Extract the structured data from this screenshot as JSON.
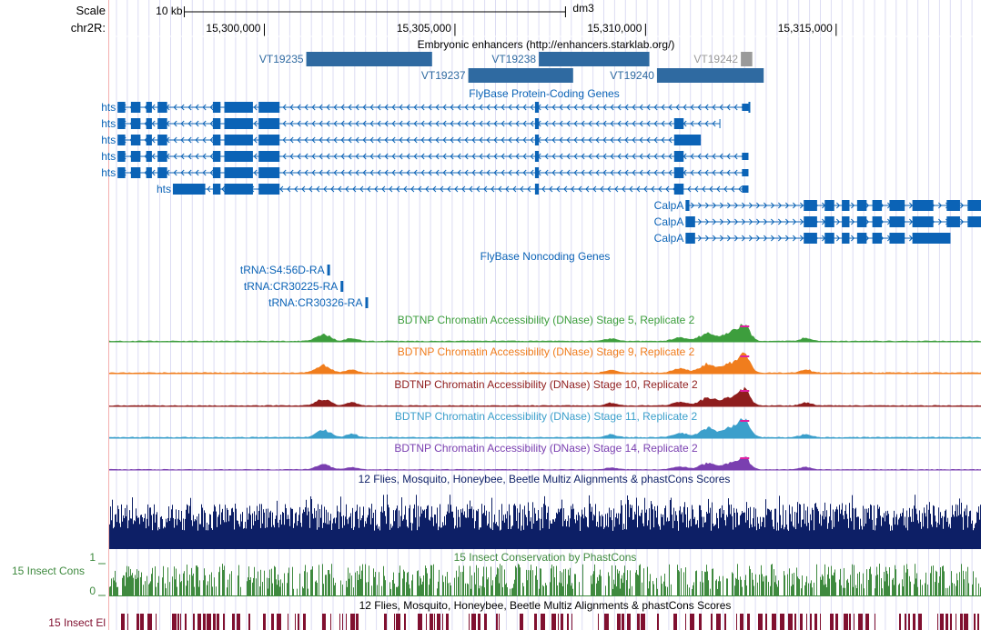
{
  "ruler": {
    "scale_label": "Scale",
    "chrom_label": "chr2R:",
    "scale_bar_text": "10 kb",
    "assembly": "dm3",
    "positions": [
      {
        "text": "15,300,000",
        "coord": 15300000
      },
      {
        "text": "15,305,000",
        "coord": 15305000
      },
      {
        "text": "15,310,000",
        "coord": 15310000
      },
      {
        "text": "15,315,000",
        "coord": 15315000
      }
    ],
    "view_start": 15295930,
    "view_end": 15318800,
    "scale_bar_start": 15297900,
    "scale_bar_end": 15307900
  },
  "colors": {
    "enhancer": "#2f6aa1",
    "enhancer_grey": "#9a9a9a",
    "gene": "#0b63b6",
    "gene_label": "#0b63b6",
    "stage5": "#3d9e3d",
    "stage9": "#f07d1d",
    "stage10": "#8f1d1d",
    "stage11": "#3b9fcb",
    "stage14": "#7a3fb0",
    "multiz": "#0d1f66",
    "cons": "#3f8a3f",
    "elements": "#801030",
    "peak_cap": "#e020a0",
    "grid": "#dcdcf3",
    "left_border": "#f4b0b0"
  },
  "tracks": {
    "enhancers": {
      "title": "Embryonic enhancers (http://enhancers.starklab.org/)",
      "items": [
        {
          "name": "VT19235",
          "start": 15301100,
          "end": 15304400,
          "row": 0
        },
        {
          "name": "VT19238",
          "start": 15307200,
          "end": 15310100,
          "row": 0
        },
        {
          "name": "VT19242",
          "start": 15312500,
          "end": 15312800,
          "row": 0,
          "grey": true
        },
        {
          "name": "VT19237",
          "start": 15305350,
          "end": 15308100,
          "row": 1
        },
        {
          "name": "VT19240",
          "start": 15310300,
          "end": 15313100,
          "row": 1
        }
      ]
    },
    "coding": {
      "title": "FlyBase Protein-Coding Genes",
      "genes": [
        {
          "name": "hts",
          "row": 0,
          "start": 15296150,
          "end": 15312700,
          "strand": "-",
          "exons": [
            [
              15296150,
              15296350
            ],
            [
              15296500,
              15296750
            ],
            [
              15296900,
              15297050
            ],
            [
              15297200,
              15297450
            ],
            [
              15298650,
              15298850
            ],
            [
              15298950,
              15299700
            ],
            [
              15299850,
              15300400
            ],
            [
              15307100,
              15307200
            ],
            [
              15312700,
              15312700
            ]
          ],
          "cds_thin": [],
          "end_box": [
            15312530,
            15312700
          ]
        },
        {
          "name": "hts",
          "row": 1,
          "start": 15296150,
          "end": 15311950,
          "strand": "-",
          "exons": [
            [
              15296150,
              15296350
            ],
            [
              15296500,
              15296750
            ],
            [
              15296900,
              15297050
            ],
            [
              15297200,
              15297450
            ],
            [
              15298650,
              15298850
            ],
            [
              15298950,
              15299700
            ],
            [
              15299850,
              15300400
            ],
            [
              15307100,
              15307200
            ],
            [
              15310750,
              15311000
            ]
          ],
          "end_box": null
        },
        {
          "name": "hts",
          "row": 2,
          "start": 15296150,
          "end": 15311450,
          "strand": "-",
          "exons": [
            [
              15296150,
              15296350
            ],
            [
              15296500,
              15296750
            ],
            [
              15296900,
              15297050
            ],
            [
              15297200,
              15297450
            ],
            [
              15298650,
              15298850
            ],
            [
              15298950,
              15299700
            ],
            [
              15299850,
              15300400
            ],
            [
              15307100,
              15307200
            ],
            [
              15310750,
              15311450
            ]
          ],
          "end_box": null
        },
        {
          "name": "hts",
          "row": 3,
          "start": 15296150,
          "end": 15312700,
          "strand": "-",
          "exons": [
            [
              15296150,
              15296350
            ],
            [
              15296500,
              15296750
            ],
            [
              15296900,
              15297050
            ],
            [
              15297200,
              15297450
            ],
            [
              15298650,
              15298850
            ],
            [
              15298950,
              15299700
            ],
            [
              15299850,
              15300400
            ],
            [
              15307100,
              15307200
            ],
            [
              15310750,
              15311000
            ]
          ],
          "end_box": [
            15312530,
            15312700
          ]
        },
        {
          "name": "hts",
          "row": 4,
          "start": 15296150,
          "end": 15312700,
          "strand": "-",
          "exons": [
            [
              15296150,
              15296350
            ],
            [
              15296500,
              15296750
            ],
            [
              15296900,
              15297050
            ],
            [
              15297200,
              15297450
            ],
            [
              15298650,
              15298850
            ],
            [
              15298950,
              15299700
            ],
            [
              15299850,
              15300400
            ],
            [
              15307100,
              15307200
            ],
            [
              15310750,
              15311000
            ]
          ],
          "end_box": [
            15312530,
            15312700
          ]
        },
        {
          "name": "hts",
          "row": 5,
          "start": 15297600,
          "end": 15312700,
          "strand": "-",
          "exons": [
            [
              15297600,
              15298450
            ],
            [
              15298650,
              15298850
            ],
            [
              15298950,
              15299700
            ],
            [
              15299850,
              15300400
            ],
            [
              15307100,
              15307200
            ],
            [
              15310750,
              15311000
            ]
          ],
          "end_box": [
            15312530,
            15312700
          ]
        },
        {
          "name": "CalpA",
          "row": 6,
          "start": 15311050,
          "end": 15318800,
          "strand": "+",
          "exons": [
            [
              15311050,
              15311150
            ],
            [
              15314150,
              15314500
            ],
            [
              15314700,
              15314950
            ],
            [
              15315150,
              15315350
            ],
            [
              15315550,
              15315800
            ],
            [
              15315950,
              15316200
            ],
            [
              15316400,
              15316800
            ],
            [
              15317000,
              15317550
            ],
            [
              15317900,
              15318250
            ],
            [
              15318450,
              15318800
            ]
          ],
          "end_box": null
        },
        {
          "name": "CalpA",
          "row": 7,
          "start": 15311050,
          "end": 15318800,
          "strand": "+",
          "exons": [
            [
              15311050,
              15311300
            ],
            [
              15314150,
              15314500
            ],
            [
              15314700,
              15314950
            ],
            [
              15315150,
              15315350
            ],
            [
              15315550,
              15315800
            ],
            [
              15315950,
              15316200
            ],
            [
              15316400,
              15316800
            ],
            [
              15317000,
              15317550
            ],
            [
              15317900,
              15318250
            ],
            [
              15318450,
              15318800
            ]
          ],
          "end_box": null
        },
        {
          "name": "CalpA",
          "row": 8,
          "start": 15311050,
          "end": 15318000,
          "strand": "+",
          "exons": [
            [
              15311050,
              15311300
            ],
            [
              15314150,
              15314500
            ],
            [
              15314700,
              15314950
            ],
            [
              15315150,
              15315350
            ],
            [
              15315550,
              15315800
            ],
            [
              15315950,
              15316200
            ],
            [
              15316400,
              15316800
            ],
            [
              15317000,
              15318000
            ]
          ],
          "end_box": null
        }
      ]
    },
    "noncoding": {
      "title": "FlyBase Noncoding Genes",
      "genes": [
        {
          "name": "tRNA:S4:56D-RA",
          "start": 15301650,
          "end": 15301720,
          "row": 0
        },
        {
          "name": "tRNA:CR30225-RA",
          "start": 15302000,
          "end": 15302070,
          "row": 1
        },
        {
          "name": "tRNA:CR30326-RA",
          "start": 15302650,
          "end": 15302720,
          "row": 2
        }
      ]
    },
    "dnase": [
      {
        "key": "stage5",
        "title": "BDTNP Chromatin Accessibility (DNase) Stage 5, Replicate 2"
      },
      {
        "key": "stage9",
        "title": "BDTNP Chromatin Accessibility (DNase) Stage 9, Replicate 2"
      },
      {
        "key": "stage10",
        "title": "BDTNP Chromatin Accessibility (DNase) Stage 10, Replicate 2"
      },
      {
        "key": "stage11",
        "title": "BDTNP Chromatin Accessibility (DNase) Stage 11, Replicate 2"
      },
      {
        "key": "stage14",
        "title": "BDTNP Chromatin Accessibility (DNase) Stage 14, Replicate 2"
      }
    ],
    "multiz": {
      "title": "12 Flies, Mosquito, Honeybee, Beetle Multiz Alignments & phastCons Scores"
    },
    "cons": {
      "title": "15 Insect Conservation by PhastCons",
      "side_label": "15 Insect Cons",
      "axis_top": "1",
      "axis_bottom": "0"
    },
    "elements": {
      "title": "12 Flies, Mosquito, Honeybee, Beetle Multiz Alignments & phastCons Scores",
      "side_label": "15 Insect El"
    }
  }
}
